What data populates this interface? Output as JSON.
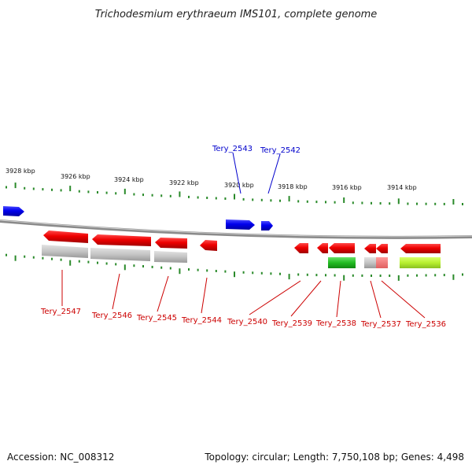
{
  "title": "Trichodesmium erythraeum IMS101, complete genome",
  "footer": {
    "accession": "Accession: NC_008312",
    "summary": "Topology: circular; Length: 7,750,108 bp; Genes: 4,498"
  },
  "colors": {
    "forward_gene": "#1515e0",
    "reverse_gene": "#e01010",
    "backbone": "#888888",
    "tick": "#2a8a2a",
    "label_forward": "#0000cc",
    "label_reverse": "#cc0000"
  },
  "kbp_labels": [
    "3928 kbp",
    "3926 kbp",
    "3924 kbp",
    "3922 kbp",
    "3920 kbp",
    "3918 kbp",
    "3916 kbp",
    "3914 kbp"
  ],
  "forward_genes": [
    "Tery_2543",
    "Tery_2542"
  ],
  "reverse_genes": [
    "Tery_2547",
    "Tery_2546",
    "Tery_2545",
    "Tery_2544",
    "Tery_2540",
    "Tery_2539",
    "Tery_2538",
    "Tery_2537",
    "Tery_2536"
  ]
}
